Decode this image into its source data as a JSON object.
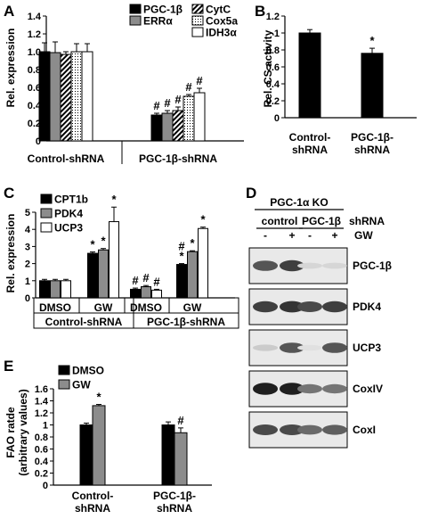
{
  "chart_data": [
    {
      "panel": "A",
      "type": "bar",
      "title": "",
      "xlabel": "",
      "ylabel": "Rel. expression",
      "ylim": [
        0,
        1.4
      ],
      "yticks": [
        "0",
        "0.2",
        "0.4",
        "0.6",
        "0.8",
        "1.0",
        "1.2",
        "1.4"
      ],
      "categories": [
        "Control-shRNA",
        "PGC-1β-shRNA"
      ],
      "legend_position": "top-right",
      "series": [
        {
          "name": "PGC-1β",
          "values": [
            1.0,
            0.29
          ],
          "errors": [
            0.1,
            0.02
          ],
          "fill": "#000000"
        },
        {
          "name": "ERRα",
          "values": [
            0.99,
            0.31
          ],
          "errors": [
            0.12,
            0.03
          ],
          "fill": "#8c8c8c"
        },
        {
          "name": "CytC",
          "values": [
            0.97,
            0.34
          ],
          "errors": [
            0.03,
            0.04
          ],
          "fill": "hatch"
        },
        {
          "name": "Cox5a",
          "values": [
            1.0,
            0.5
          ],
          "errors": [
            0.09,
            0.02
          ],
          "fill": "dots"
        },
        {
          "name": "IDH3α",
          "values": [
            1.0,
            0.54
          ],
          "errors": [
            0.09,
            0.05
          ],
          "fill": "#ffffff"
        }
      ],
      "annotations": [
        {
          "group": 1,
          "series": 0,
          "text": "#"
        },
        {
          "group": 1,
          "series": 1,
          "text": "#"
        },
        {
          "group": 1,
          "series": 2,
          "text": "#"
        },
        {
          "group": 1,
          "series": 3,
          "text": "#"
        },
        {
          "group": 1,
          "series": 4,
          "text": "#"
        }
      ]
    },
    {
      "panel": "B",
      "type": "bar",
      "title": "",
      "xlabel": "",
      "ylabel": "Rel. CS activity",
      "ylim": [
        0,
        1.2
      ],
      "yticks": [
        "0",
        "0.2",
        "0.4",
        "0.6",
        "0.8",
        "1",
        "1.2"
      ],
      "categories": [
        "Control-shRNA",
        "PGC-1β-shRNA"
      ],
      "category_lines": [
        [
          "Control-",
          "shRNA"
        ],
        [
          "PGC-1β-",
          "shRNA"
        ]
      ],
      "series": [
        {
          "name": "",
          "values": [
            1.0,
            0.76
          ],
          "errors": [
            0.04,
            0.06
          ],
          "fill": "#000000"
        }
      ],
      "annotations": [
        {
          "group": 1,
          "series": 0,
          "text": "*"
        }
      ]
    },
    {
      "panel": "C",
      "type": "bar",
      "title": "",
      "xlabel": "",
      "ylabel": "Rel. expression",
      "ylim": [
        0,
        5
      ],
      "yticks": [
        "0",
        "1",
        "2",
        "3",
        "4",
        "5"
      ],
      "categories": [
        "DMSO",
        "GW",
        "DMSO",
        "GW"
      ],
      "category_groups": [
        "Control-shRNA",
        "PGC-1β-shRNA"
      ],
      "legend_position": "top-left",
      "series": [
        {
          "name": "CPT1b",
          "values": [
            1.0,
            2.6,
            0.5,
            1.95
          ],
          "errors": [
            0.08,
            0.08,
            0.07,
            0.05
          ],
          "fill": "#000000"
        },
        {
          "name": "PDK4",
          "values": [
            1.0,
            2.8,
            0.65,
            2.7
          ],
          "errors": [
            0.08,
            0.08,
            0.07,
            0.05
          ],
          "fill": "#8c8c8c"
        },
        {
          "name": "UCP3",
          "values": [
            1.0,
            4.45,
            0.45,
            4.05
          ],
          "errors": [
            0.08,
            0.85,
            0.05,
            0.08
          ],
          "fill": "#ffffff"
        }
      ],
      "annotations": [
        {
          "group": 1,
          "series": 0,
          "text": "*"
        },
        {
          "group": 1,
          "series": 1,
          "text": "*"
        },
        {
          "group": 1,
          "series": 2,
          "text": "*"
        },
        {
          "group": 2,
          "series": 0,
          "text": "#"
        },
        {
          "group": 2,
          "series": 1,
          "text": "#"
        },
        {
          "group": 2,
          "series": 2,
          "text": "#"
        },
        {
          "group": 3,
          "series": 0,
          "text": "*"
        },
        {
          "group": 3,
          "series": 0,
          "text": "#"
        },
        {
          "group": 3,
          "series": 1,
          "text": "*"
        },
        {
          "group": 3,
          "series": 2,
          "text": "*"
        }
      ]
    },
    {
      "panel": "E",
      "type": "bar",
      "title": "",
      "xlabel": "",
      "ylabel": "FAO ratde (arbitrary values)",
      "ylabel_lines": [
        "FAO ratde",
        "(arbitrary values)"
      ],
      "ylim": [
        0,
        1.6
      ],
      "yticks": [
        "0",
        "0.2",
        "0.4",
        "0.6",
        "0.8",
        "1",
        "1.2",
        "1.4",
        "1.6"
      ],
      "categories": [
        "Control-shRNA",
        "PGC-1β-shRNA"
      ],
      "category_lines": [
        [
          "Control-",
          "shRNA"
        ],
        [
          "PGC-1β-",
          "shRNA"
        ]
      ],
      "legend_position": "top-left",
      "series": [
        {
          "name": "DMSO",
          "values": [
            1.0,
            1.0
          ],
          "errors": [
            0.03,
            0.05
          ],
          "fill": "#000000"
        },
        {
          "name": "GW",
          "values": [
            1.32,
            0.87
          ],
          "errors": [
            0.02,
            0.08
          ],
          "fill": "#8c8c8c"
        }
      ],
      "annotations": [
        {
          "group": 0,
          "series": 1,
          "text": "*"
        },
        {
          "group": 1,
          "series": 1,
          "text": "#"
        }
      ]
    }
  ],
  "panel_labels": [
    "A",
    "B",
    "C",
    "D",
    "E"
  ],
  "blot": {
    "title": "PGC-1α KO",
    "groups": [
      "control",
      "PGC-1β"
    ],
    "shrna_label": "shRNA",
    "gw_label": "GW",
    "lane_signs": [
      "-",
      "+",
      "-",
      "+"
    ],
    "bands": [
      {
        "label": "PGC-1β",
        "intensity": [
          0.7,
          0.8,
          0.1,
          0.1
        ]
      },
      {
        "label": "PDK4",
        "intensity": [
          0.8,
          0.85,
          0.75,
          0.8
        ]
      },
      {
        "label": "UCP3",
        "intensity": [
          0.15,
          0.7,
          0.05,
          0.7
        ]
      },
      {
        "label": "CoxIV",
        "intensity": [
          0.95,
          0.95,
          0.55,
          0.55
        ]
      },
      {
        "label": "CoxI",
        "intensity": [
          0.75,
          0.75,
          0.6,
          0.65
        ]
      }
    ]
  }
}
